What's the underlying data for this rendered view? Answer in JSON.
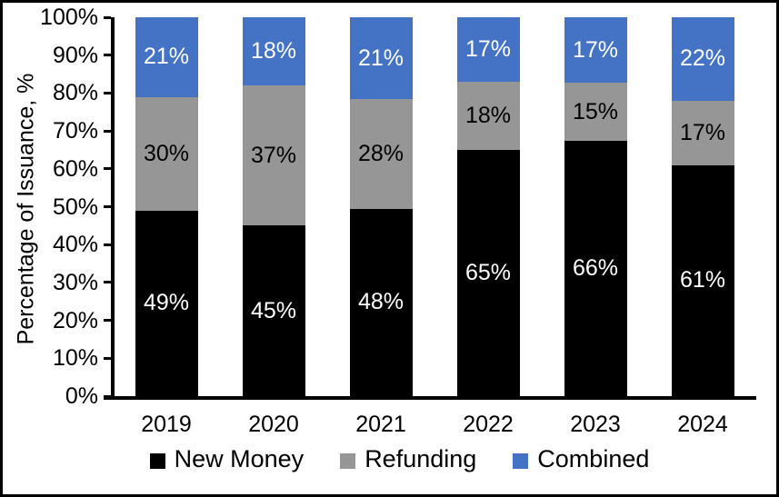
{
  "figure": {
    "border_color": "#000000",
    "background": "#ffffff"
  },
  "chart_data": {
    "type": "bar",
    "stacked": true,
    "title": "",
    "xlabel": "",
    "ylabel": "Percentage of Issuance, %",
    "categories": [
      "2019",
      "2020",
      "2021",
      "2022",
      "2023",
      "2024"
    ],
    "series": [
      {
        "name": "New Money",
        "color": "#000000",
        "label_color": "#ffffff",
        "values": [
          49,
          45,
          48,
          65,
          66,
          61
        ]
      },
      {
        "name": "Refunding",
        "color": "#969696",
        "label_color": "#000000",
        "values": [
          30,
          37,
          28,
          18,
          15,
          17
        ]
      },
      {
        "name": "Combined",
        "color": "#4472C4",
        "label_color": "#ffffff",
        "values": [
          21,
          18,
          21,
          17,
          17,
          22
        ]
      }
    ],
    "value_suffix": "%",
    "ylim": [
      0,
      100
    ],
    "yticks": [
      0,
      10,
      20,
      30,
      40,
      50,
      60,
      70,
      80,
      90,
      100
    ],
    "ytick_suffix": "%",
    "grid": false,
    "legend_position": "bottom"
  }
}
